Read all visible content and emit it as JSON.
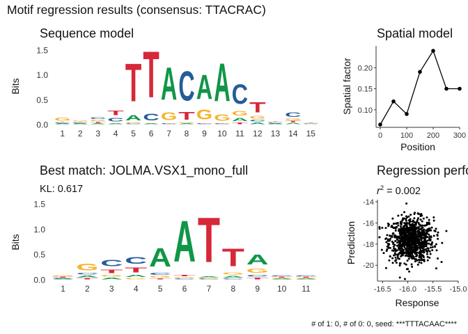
{
  "page": {
    "title": "Motif regression results (consensus: TTACRAC)",
    "footer": "# of 1: 0, # of 0: 0, seed: ***TTTACAAC****"
  },
  "colors": {
    "A": "#109648",
    "C": "#255C99",
    "G": "#F7B32B",
    "T": "#D62839",
    "line": "#000000",
    "axis": "#333333"
  },
  "chart_data": [
    {
      "id": "sequence-model",
      "type": "sequence-logo",
      "title": "Sequence model",
      "ylabel": "Bits",
      "ylim": [
        0,
        1.5
      ],
      "yticks": [
        "0.0",
        "0.5",
        "1.0",
        "1.5"
      ],
      "positions": [
        {
          "x": 1,
          "A": 0.02,
          "C": 0.02,
          "G": 0.1,
          "T": 0.02
        },
        {
          "x": 2,
          "A": 0.02,
          "C": 0.02,
          "G": 0.03,
          "T": 0.02
        },
        {
          "x": 3,
          "A": 0.03,
          "C": 0.05,
          "G": 0.04,
          "T": 0.03
        },
        {
          "x": 4,
          "A": 0.02,
          "C": 0.12,
          "G": 0.02,
          "T": 0.14
        },
        {
          "x": 5,
          "A": 0.18,
          "C": 0.02,
          "G": 0.03,
          "T": 1.22
        },
        {
          "x": 6,
          "A": 0.02,
          "C": 0.22,
          "G": 0.02,
          "T": 1.49
        },
        {
          "x": 7,
          "A": 1.05,
          "C": 0.02,
          "G": 0.25,
          "T": 0.02
        },
        {
          "x": 8,
          "A": 0.02,
          "C": 0.95,
          "G": 0.03,
          "T": 0.25
        },
        {
          "x": 9,
          "A": 0.78,
          "C": 0.02,
          "G": 0.32,
          "T": 0.02
        },
        {
          "x": 10,
          "A": 1.22,
          "C": 0.02,
          "G": 0.2,
          "T": 0.02
        },
        {
          "x": 11,
          "A": 0.1,
          "C": 0.62,
          "G": 0.15,
          "T": 0.05
        },
        {
          "x": 12,
          "A": 0.05,
          "C": 0.05,
          "G": 0.08,
          "T": 0.34
        },
        {
          "x": 13,
          "A": 0.02,
          "C": 0.02,
          "G": 0.02,
          "T": 0.02
        },
        {
          "x": 14,
          "A": 0.04,
          "C": 0.14,
          "G": 0.05,
          "T": 0.04
        },
        {
          "x": 15,
          "A": 0.01,
          "C": 0.01,
          "G": 0.01,
          "T": 0.01
        }
      ]
    },
    {
      "id": "spatial-model",
      "type": "line",
      "title": "Spatial model",
      "xlabel": "Position",
      "ylabel": "Spatial factor",
      "xlim": [
        0,
        300
      ],
      "ylim": [
        0.065,
        0.245
      ],
      "xticks": [
        0,
        100,
        200,
        300
      ],
      "yticks": [
        0.1,
        0.15,
        0.2
      ],
      "x": [
        0,
        50,
        100,
        150,
        200,
        250,
        300
      ],
      "y": [
        0.065,
        0.12,
        0.09,
        0.19,
        0.24,
        0.15,
        0.15
      ]
    },
    {
      "id": "best-match",
      "type": "sequence-logo",
      "title": "Best match: JOLMA.VSX1_mono_full",
      "subtitle": "KL: 0.617",
      "ylabel": "Bits",
      "ylim": [
        0,
        1.5
      ],
      "yticks": [
        "0.0",
        "0.5",
        "1.0",
        "1.5"
      ],
      "positions": [
        {
          "x": 1,
          "A": 0.02,
          "C": 0.02,
          "G": 0.03,
          "T": 0.02
        },
        {
          "x": 2,
          "A": 0.05,
          "C": 0.05,
          "G": 0.22,
          "T": 0.04
        },
        {
          "x": 3,
          "A": 0.05,
          "C": 0.2,
          "G": 0.06,
          "T": 0.12
        },
        {
          "x": 4,
          "A": 0.07,
          "C": 0.22,
          "G": 0.04,
          "T": 0.16
        },
        {
          "x": 5,
          "A": 0.58,
          "C": 0.07,
          "G": 0.05,
          "T": 0.03
        },
        {
          "x": 6,
          "A": 1.3,
          "C": 0.03,
          "G": 0.03,
          "T": 0.04
        },
        {
          "x": 7,
          "A": 0.03,
          "C": 0.02,
          "G": 0.02,
          "T": 1.42
        },
        {
          "x": 8,
          "A": 0.06,
          "C": 0.03,
          "G": 0.07,
          "T": 0.55
        },
        {
          "x": 9,
          "A": 0.32,
          "C": 0.06,
          "G": 0.13,
          "T": 0.05
        },
        {
          "x": 10,
          "A": 0.02,
          "C": 0.03,
          "G": 0.02,
          "T": 0.02
        },
        {
          "x": 11,
          "A": 0.02,
          "C": 0.03,
          "G": 0.02,
          "T": 0.02
        }
      ]
    },
    {
      "id": "regression",
      "type": "scatter",
      "title": "Regression performance",
      "subtitle_prefix": "r",
      "subtitle_exp": "2",
      "subtitle_rest": " = 0.002",
      "xlabel": "Response",
      "ylabel": "Prediction",
      "xlim": [
        -16.6,
        -15.0
      ],
      "ylim": [
        -21.5,
        -13.8
      ],
      "xticks": [
        "-16.5",
        "-16.0",
        "-15.5",
        "-15.0"
      ],
      "xtick_values": [
        -16.5,
        -16.0,
        -15.5,
        -15.0
      ],
      "yticks": [
        "-20",
        "-18",
        "-16",
        "-14"
      ],
      "ytick_values": [
        -20,
        -18,
        -16,
        -14
      ],
      "n_points": 900,
      "x_mean": -15.93,
      "x_sd": 0.22,
      "y_mean": -17.6,
      "y_sd": 1.05
    }
  ]
}
